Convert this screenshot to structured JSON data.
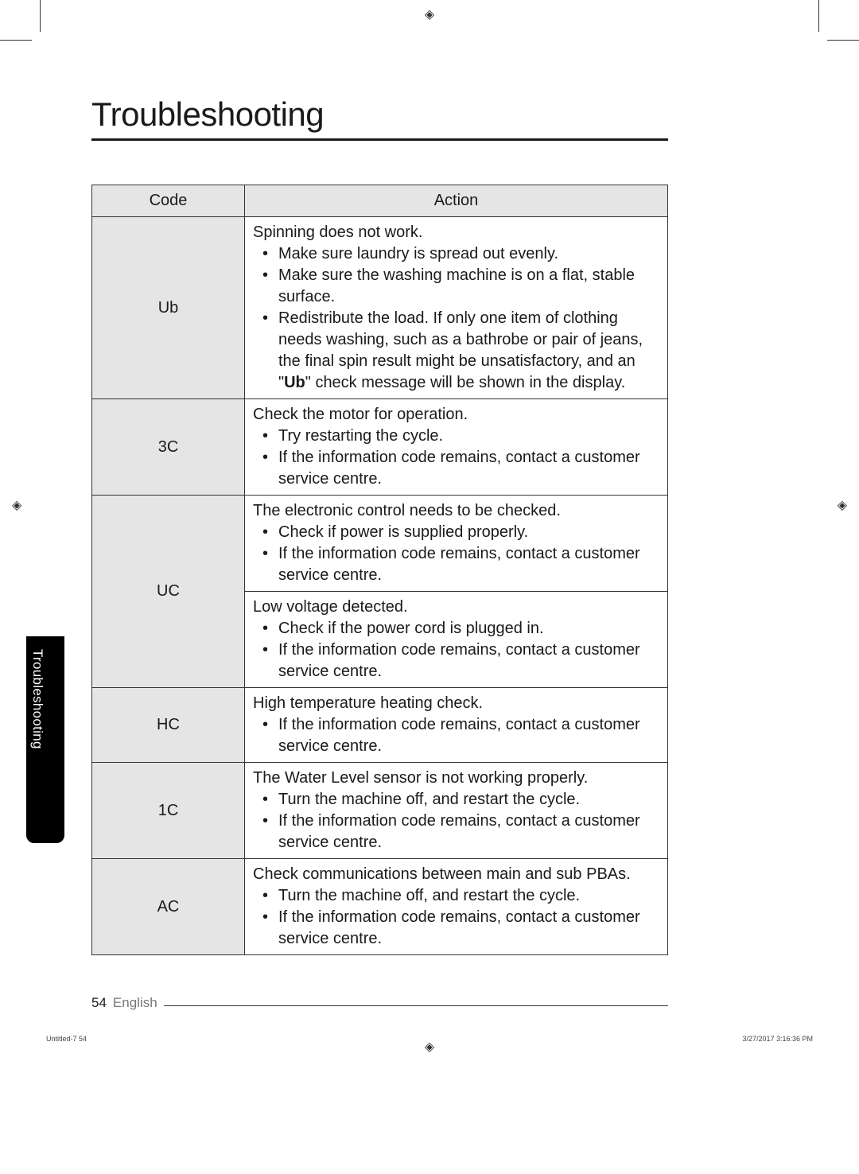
{
  "title": "Troubleshooting",
  "sideTab": "Troubleshooting",
  "table": {
    "headers": {
      "code": "Code",
      "action": "Action"
    },
    "rows": [
      {
        "code": "Ub",
        "lead": "Spinning does not work.",
        "bullets": [
          "Make sure laundry is spread out evenly.",
          "Make sure the washing machine is on a flat, stable surface.",
          "Redistribute the load. If only one item of clothing needs washing, such as a bathrobe or pair of jeans, the final spin result might be unsatisfactory, and an \"Ub\" check message will be shown in the display."
        ]
      },
      {
        "code": "3C",
        "lead": "Check the motor for operation.",
        "bullets": [
          "Try restarting the cycle.",
          "If the information code remains, contact a customer service centre."
        ]
      },
      {
        "code": "UC",
        "actions": [
          {
            "lead": "The electronic control needs to be checked.",
            "bullets": [
              "Check if power is supplied properly.",
              "If the information code remains, contact a customer service centre."
            ]
          },
          {
            "lead": "Low voltage detected.",
            "bullets": [
              "Check if the power cord is plugged in.",
              "If the information code remains, contact a customer service centre."
            ]
          }
        ]
      },
      {
        "code": "HC",
        "lead": "High temperature heating check.",
        "bullets": [
          "If the information code remains, contact a customer service centre."
        ]
      },
      {
        "code": "1C",
        "lead": "The Water Level sensor is not working properly.",
        "bullets": [
          "Turn the machine off, and restart the cycle.",
          "If the information code remains, contact a customer service centre."
        ]
      },
      {
        "code": "AC",
        "lead": "Check communications between main and sub PBAs.",
        "bullets": [
          "Turn the machine off, and restart the cycle.",
          "If the information code remains, contact a customer service centre."
        ]
      }
    ]
  },
  "footer": {
    "page": "54",
    "lang": "English"
  },
  "printInfo": {
    "left": "Untitled-7   54",
    "right": "3/27/2017   3:16:36 PM"
  },
  "colWidth": {
    "code": "192px"
  }
}
